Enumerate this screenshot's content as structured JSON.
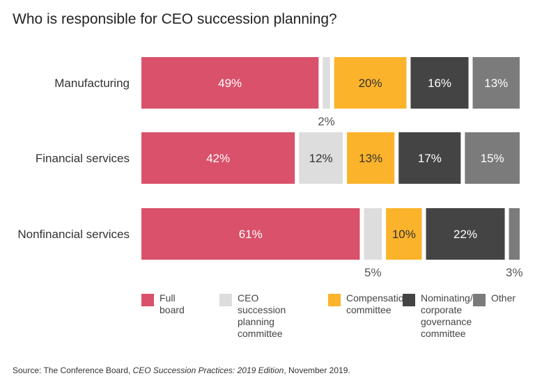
{
  "chart_data": {
    "type": "bar",
    "orientation": "horizontal",
    "stacked": true,
    "title": "Who is responsible for CEO succession planning?",
    "categories": [
      "Manufacturing",
      "Financial services",
      "Nonfinancial services"
    ],
    "series": [
      {
        "name": "Full board",
        "color": "#d9516b",
        "values": [
          49,
          42,
          61
        ]
      },
      {
        "name": "CEO succession planning committee",
        "color": "#dddddd",
        "values": [
          2,
          12,
          5
        ]
      },
      {
        "name": "Compensation committee",
        "color": "#fbb32b",
        "values": [
          20,
          13,
          10
        ]
      },
      {
        "name": "Nominating/ corporate governance committee",
        "color": "#444444",
        "values": [
          16,
          17,
          22
        ]
      },
      {
        "name": "Other",
        "color": "#7b7b7b",
        "values": [
          13,
          15,
          3
        ]
      }
    ],
    "data_label_suffix": "%",
    "legend": "bottom",
    "grid": false
  },
  "legend_labels": [
    "Full board",
    "CEO succession\nplanning\ncommittee",
    "Compensation\ncommittee",
    "Nominating/\ncorporate\ngovernance\ncommittee",
    "Other"
  ],
  "source": {
    "prefix": "Source: The Conference Board, ",
    "title": "CEO Succession Practices: 2019 Edition",
    "suffix": ", November 2019."
  }
}
